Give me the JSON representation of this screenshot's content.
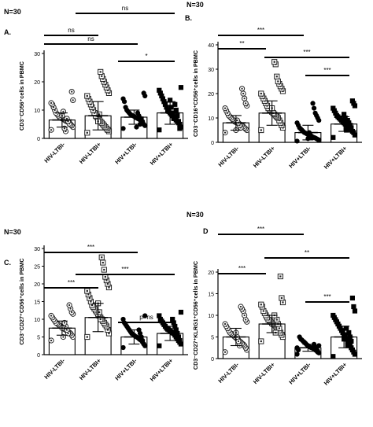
{
  "chart_data": [
    {
      "type": "scatter",
      "n_label": "N=30",
      "panel": "A.",
      "ylabel": "CD3⁻CD56⁺cells in PBMC",
      "ylim": [
        0,
        30
      ],
      "yticks": [
        "0",
        "10",
        "20",
        "30"
      ],
      "ytick_values": [
        0,
        10,
        20,
        30
      ],
      "categories": [
        "HIV-LTBI-",
        "HIV-LTBI+",
        "HIV+LTBI-",
        "HIV+LTBI+"
      ],
      "markers": [
        "circle-dot",
        "square-dot",
        "circle",
        "square"
      ],
      "bar_means": [
        6.5,
        8.0,
        7.5,
        9.0
      ],
      "sd": [
        2.5,
        5.0,
        2.5,
        4.0
      ],
      "points": [
        [
          3.0,
          4.0,
          4.5,
          5.0,
          5.5,
          5.8,
          6.0,
          6.2,
          6.5,
          6.8,
          7.0,
          7.2,
          7.5,
          8.0,
          8.5,
          9.0,
          10.0,
          11.0,
          12.0,
          12.5,
          13.5,
          16.5,
          4.8,
          5.2,
          6.0,
          7.0,
          2.5,
          3.5,
          9.5,
          8.0
        ],
        [
          2.0,
          2.5,
          3.0,
          3.5,
          4.0,
          4.5,
          5.0,
          5.5,
          6.0,
          6.5,
          7.0,
          7.5,
          8.0,
          9.0,
          10.0,
          11.0,
          12.0,
          13.0,
          14.0,
          15.0,
          16.0,
          17.0,
          18.0,
          19.0,
          20.0,
          21.0,
          22.0,
          23.5,
          8.5,
          6.0
        ],
        [
          3.5,
          4.5,
          5.0,
          5.5,
          6.0,
          6.5,
          6.8,
          7.0,
          7.2,
          7.5,
          7.8,
          8.0,
          8.2,
          8.5,
          9.0,
          9.5,
          10.0,
          11.0,
          13.0,
          14.0,
          15.0,
          16.0,
          6.0,
          7.0,
          5.0,
          8.0,
          9.0,
          4.0
        ],
        [
          3.0,
          4.0,
          5.0,
          5.5,
          6.0,
          6.5,
          7.0,
          7.5,
          8.0,
          8.5,
          9.0,
          9.5,
          10.0,
          11.0,
          12.0,
          13.0,
          14.0,
          15.0,
          16.0,
          17.0,
          18.0,
          3.5,
          6.0,
          8.0,
          10.0,
          12.0,
          7.0,
          9.0,
          11.0,
          13.5
        ]
      ],
      "brackets": [
        {
          "from": 0,
          "to": 2,
          "label": "ns"
        },
        {
          "from": 0,
          "to": 1,
          "label": "ns"
        },
        {
          "from": 1,
          "to": 3,
          "label": "ns"
        },
        {
          "from": 2,
          "to": 3,
          "label": "*"
        }
      ]
    },
    {
      "type": "scatter",
      "n_label": "N=30",
      "panel": "B.",
      "ylabel": "CD3⁻CD16⁺CD56⁺cells in PBMC",
      "ylim": [
        0,
        40
      ],
      "yticks": [
        "0",
        "10",
        "20",
        "30",
        "40"
      ],
      "ytick_values": [
        0,
        10,
        20,
        30,
        40
      ],
      "categories": [
        "HIV-LTBI-",
        "HIV-LTBI+",
        "HIV+LTBI-",
        "HIV+LTBI+"
      ],
      "markers": [
        "circle-dot",
        "square-dot",
        "circle",
        "square"
      ],
      "bar_means": [
        8.0,
        12.0,
        4.0,
        7.5
      ],
      "sd": [
        3.0,
        5.0,
        3.0,
        3.0
      ],
      "points": [
        [
          4.0,
          5.0,
          5.5,
          6.0,
          6.5,
          7.0,
          7.2,
          7.5,
          7.8,
          8.0,
          8.2,
          8.5,
          9.0,
          9.5,
          10.0,
          10.5,
          11.0,
          12.0,
          13.0,
          14.0,
          15.0,
          16.0,
          18.0,
          20.0,
          22.0,
          6.0,
          7.0,
          8.0,
          9.0,
          5.0
        ],
        [
          5.0,
          6.0,
          7.0,
          8.0,
          9.0,
          10.0,
          10.5,
          11.0,
          11.5,
          12.0,
          12.5,
          13.0,
          13.5,
          14.0,
          15.0,
          16.0,
          17.0,
          18.0,
          19.0,
          20.0,
          21.0,
          22.0,
          23.0,
          24.0,
          25.0,
          27.0,
          32.0,
          33.0,
          12.0,
          14.0
        ],
        [
          0.5,
          1.0,
          1.2,
          1.5,
          1.8,
          2.0,
          2.2,
          2.5,
          2.8,
          3.0,
          3.2,
          3.5,
          3.8,
          4.0,
          4.5,
          5.0,
          5.5,
          6.0,
          7.0,
          8.0,
          9.0,
          10.0,
          11.0,
          12.0,
          14.0,
          16.0,
          2.0,
          3.0,
          4.0,
          1.5
        ],
        [
          2.0,
          3.0,
          4.0,
          4.5,
          5.0,
          5.5,
          6.0,
          6.5,
          7.0,
          7.5,
          8.0,
          8.5,
          9.0,
          9.5,
          10.0,
          10.5,
          11.0,
          12.0,
          13.0,
          14.0,
          15.0,
          16.0,
          17.0,
          6.0,
          7.0,
          8.0,
          9.0,
          5.0,
          10.0,
          11.5
        ]
      ],
      "brackets": [
        {
          "from": 0,
          "to": 2,
          "label": "***"
        },
        {
          "from": 0,
          "to": 1,
          "label": "**"
        },
        {
          "from": 1,
          "to": 3,
          "label": "***"
        },
        {
          "from": 2,
          "to": 3,
          "label": "***"
        }
      ]
    },
    {
      "type": "scatter",
      "n_label": "N=30",
      "panel": "C.",
      "ylabel": "CD3⁻CD27⁺CD56⁺cells in PBMC",
      "ylim": [
        0,
        30
      ],
      "yticks": [
        "0",
        "5",
        "10",
        "15",
        "20",
        "25",
        "30"
      ],
      "ytick_values": [
        0,
        5,
        10,
        15,
        20,
        25,
        30
      ],
      "categories": [
        "HIV-LTBI-",
        "HIV-LTBI+",
        "HIV+LTBI-",
        "HIV+LTBI+"
      ],
      "markers": [
        "circle-dot",
        "square-dot",
        "circle",
        "square"
      ],
      "bar_means": [
        7.5,
        10.5,
        5.0,
        6.0
      ],
      "sd": [
        2.0,
        4.0,
        2.0,
        2.0
      ],
      "points": [
        [
          4.0,
          5.0,
          5.5,
          6.0,
          6.3,
          6.5,
          6.8,
          7.0,
          7.2,
          7.5,
          7.8,
          8.0,
          8.2,
          8.5,
          8.8,
          9.0,
          9.5,
          10.0,
          10.5,
          11.0,
          11.5,
          12.0,
          13.0,
          14.0,
          6.0,
          7.0,
          8.0,
          9.0,
          5.0,
          7.5
        ],
        [
          5.0,
          6.0,
          7.0,
          8.0,
          8.5,
          9.0,
          9.5,
          10.0,
          10.5,
          11.0,
          11.5,
          12.0,
          12.5,
          13.0,
          13.5,
          14.0,
          15.0,
          16.0,
          17.0,
          18.0,
          19.0,
          20.0,
          21.0,
          22.0,
          24.0,
          26.0,
          27.5,
          10.0,
          12.0,
          14.5
        ],
        [
          2.0,
          2.5,
          3.0,
          3.5,
          4.0,
          4.2,
          4.5,
          4.8,
          5.0,
          5.2,
          5.5,
          5.8,
          6.0,
          6.5,
          7.0,
          7.5,
          8.0,
          8.5,
          9.0,
          10.0,
          11.0,
          3.0,
          4.0,
          5.0,
          6.0,
          7.0
        ],
        [
          2.5,
          3.0,
          3.5,
          4.0,
          4.5,
          5.0,
          5.5,
          6.0,
          6.2,
          6.5,
          6.8,
          7.0,
          7.2,
          7.5,
          8.0,
          8.5,
          9.0,
          9.5,
          10.0,
          11.0,
          12.0,
          4.0,
          5.0,
          6.0,
          7.0,
          8.0,
          9.0,
          10.0
        ]
      ],
      "brackets": [
        {
          "from": 0,
          "to": 2,
          "label": "***"
        },
        {
          "from": 0,
          "to": 1,
          "label": "***"
        },
        {
          "from": 1,
          "to": 3,
          "label": "***"
        },
        {
          "from": 2,
          "to": 3,
          "label": "p=ns"
        }
      ]
    },
    {
      "type": "scatter",
      "n_label": "N=30",
      "panel": "D",
      "ylabel": "CD3⁻CD27⁺KLRG1⁺CD56⁺cells in PBMC",
      "ylim": [
        0,
        20
      ],
      "yticks": [
        "0",
        "5",
        "10",
        "15",
        "20"
      ],
      "ytick_values": [
        0,
        5,
        10,
        15,
        20
      ],
      "categories": [
        "HIV-LTBI-",
        "HIV-LTBI+",
        "HIV+LTBI-",
        "HIV+LTBI+"
      ],
      "markers": [
        "circle-dot",
        "square-dot",
        "circle",
        "square"
      ],
      "bar_means": [
        5.0,
        8.0,
        2.5,
        5.0
      ],
      "sd": [
        2.0,
        2.0,
        0.8,
        2.5
      ],
      "points": [
        [
          1.5,
          2.0,
          2.5,
          3.0,
          3.3,
          3.5,
          3.8,
          4.0,
          4.3,
          4.5,
          4.8,
          5.0,
          5.3,
          5.5,
          5.8,
          6.0,
          6.5,
          7.0,
          7.5,
          8.0,
          8.5,
          9.0,
          10.0,
          11.0,
          11.5,
          12.0,
          3.0,
          4.0,
          5.0,
          6.0
        ],
        [
          4.0,
          5.0,
          5.5,
          6.0,
          6.5,
          7.0,
          7.2,
          7.5,
          7.8,
          8.0,
          8.2,
          8.5,
          8.8,
          9.0,
          9.5,
          10.0,
          10.5,
          11.0,
          12.0,
          12.5,
          13.0,
          14.0,
          19.0,
          7.0,
          8.0,
          9.0,
          6.0,
          10.0
        ],
        [
          1.0,
          1.3,
          1.5,
          1.8,
          2.0,
          2.2,
          2.4,
          2.5,
          2.6,
          2.8,
          3.0,
          3.2,
          3.5,
          3.8,
          4.0,
          4.3,
          4.5,
          5.0,
          2.0,
          2.5,
          3.0,
          1.8,
          2.2,
          2.7,
          3.3
        ],
        [
          0.5,
          1.0,
          1.5,
          2.0,
          2.5,
          3.0,
          3.5,
          4.0,
          4.5,
          5.0,
          5.5,
          6.0,
          6.5,
          7.0,
          7.5,
          8.0,
          8.5,
          9.0,
          9.5,
          10.0,
          11.0,
          12.0,
          14.0,
          4.0,
          5.0,
          6.0,
          3.0,
          7.0,
          5.5,
          4.5
        ]
      ],
      "brackets": [
        {
          "from": 0,
          "to": 2,
          "label": "***"
        },
        {
          "from": 0,
          "to": 1,
          "label": "***"
        },
        {
          "from": 1,
          "to": 3,
          "label": "**"
        },
        {
          "from": 2,
          "to": 3,
          "label": "***"
        }
      ]
    }
  ]
}
